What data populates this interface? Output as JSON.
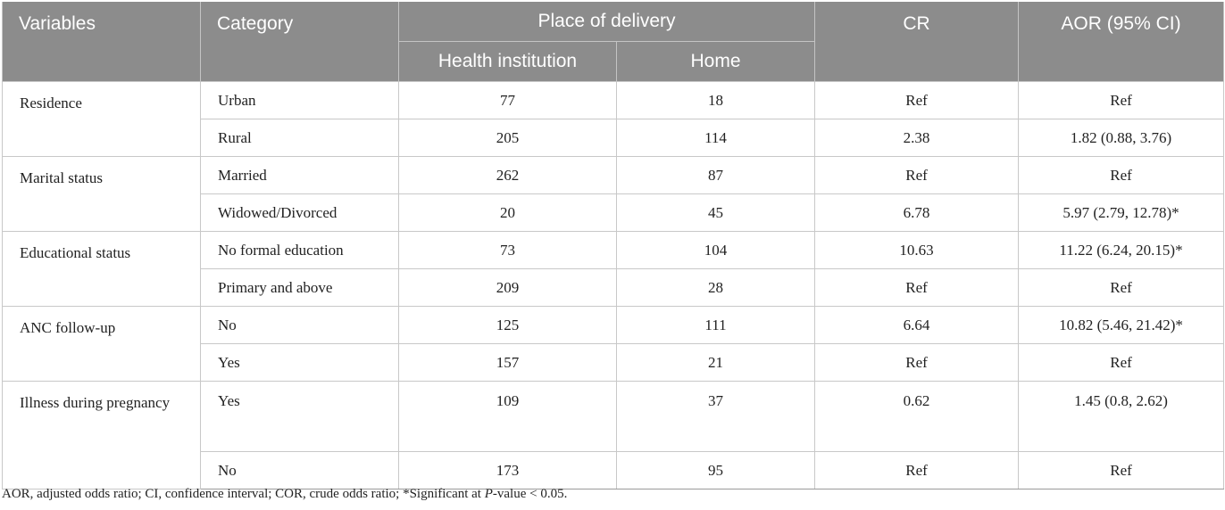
{
  "table": {
    "headers": {
      "variables": "Variables",
      "category": "Category",
      "place_of_delivery": "Place of delivery",
      "health_institution": "Health institution",
      "home": "Home",
      "cr": "CR",
      "aor": "AOR (95% CI)"
    },
    "groups": [
      {
        "variable": "Residence",
        "rows": [
          {
            "category": "Urban",
            "health": "77",
            "home": "18",
            "cr": "Ref",
            "aor": "Ref"
          },
          {
            "category": "Rural",
            "health": "205",
            "home": "114",
            "cr": "2.38",
            "aor": "1.82 (0.88, 3.76)"
          }
        ]
      },
      {
        "variable": "Marital status",
        "rows": [
          {
            "category": "Married",
            "health": "262",
            "home": "87",
            "cr": "Ref",
            "aor": "Ref"
          },
          {
            "category": "Widowed/Divorced",
            "health": "20",
            "home": "45",
            "cr": "6.78",
            "aor": "5.97 (2.79, 12.78)*"
          }
        ]
      },
      {
        "variable": "Educational status",
        "rows": [
          {
            "category": "No formal education",
            "health": "73",
            "home": "104",
            "cr": "10.63",
            "aor": "11.22 (6.24, 20.15)*"
          },
          {
            "category": "Primary and above",
            "health": "209",
            "home": "28",
            "cr": "Ref",
            "aor": "Ref"
          }
        ]
      },
      {
        "variable": "ANC follow-up",
        "rows": [
          {
            "category": "No",
            "health": "125",
            "home": "111",
            "cr": "6.64",
            "aor": "10.82 (5.46, 21.42)*"
          },
          {
            "category": "Yes",
            "health": "157",
            "home": "21",
            "cr": "Ref",
            "aor": "Ref"
          }
        ]
      },
      {
        "variable": "Illness during pregnancy",
        "rows": [
          {
            "category": "Yes",
            "health": "109",
            "home": "37",
            "cr": "0.62",
            "aor": "1.45 (0.8, 2.62)"
          },
          {
            "category": "No",
            "health": "173",
            "home": "95",
            "cr": "Ref",
            "aor": "Ref"
          }
        ]
      }
    ]
  },
  "footnote": {
    "text_before": "AOR, adjusted odds ratio; CI, confidence interval; COR, crude odds ratio; *Significant at ",
    "p": "P",
    "text_after": "-value < 0.05."
  }
}
